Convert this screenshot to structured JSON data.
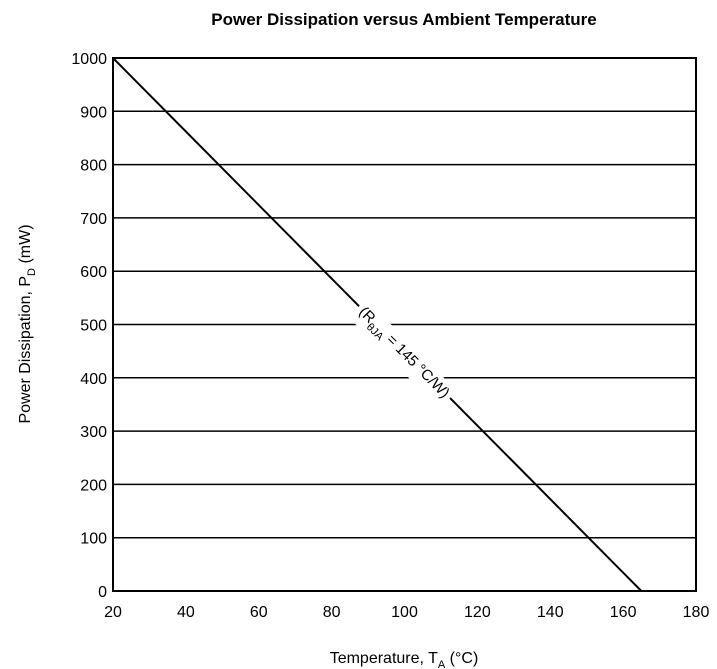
{
  "chart_data": {
    "type": "line",
    "title": "Power Dissipation versus Ambient Temperature",
    "xlabel": {
      "main": "Temperature, T",
      "sub": "A",
      "unit": " (°C)"
    },
    "ylabel": {
      "main": "Power Dissipation, P",
      "sub": "D",
      "unit": " (mW)"
    },
    "xlim": [
      20,
      180
    ],
    "ylim": [
      0,
      1000
    ],
    "x_ticks": [
      20,
      40,
      60,
      80,
      100,
      120,
      140,
      160,
      180
    ],
    "y_ticks": [
      0,
      100,
      200,
      300,
      400,
      500,
      600,
      700,
      800,
      900,
      1000
    ],
    "grid": "horizontal",
    "series": [
      {
        "x": [
          20,
          165
        ],
        "y": [
          1000,
          0
        ]
      }
    ],
    "annotation": {
      "open": "(R",
      "sub": "θJA",
      "close": " = 145 °C/W)",
      "at": {
        "x": 100,
        "y": 448
      }
    }
  }
}
